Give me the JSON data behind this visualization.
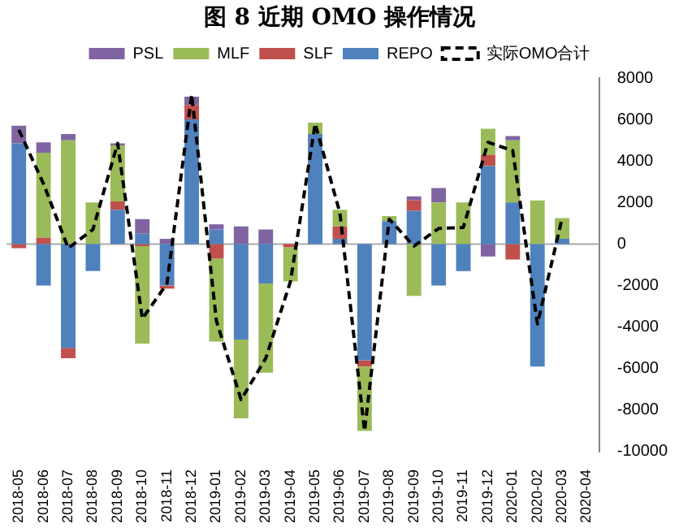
{
  "chart_data": {
    "type": "bar",
    "title": "图 8  近期 OMO 操作情况",
    "stacked": true,
    "categories": [
      "2018-05",
      "2018-06",
      "2018-07",
      "2018-08",
      "2018-09",
      "2018-10",
      "2018-11",
      "2018-12",
      "2019-01",
      "2019-02",
      "2019-03",
      "2019-04",
      "2019-05",
      "2019-06",
      "2019-07",
      "2019-08",
      "2019-09",
      "2019-10",
      "2019-11",
      "2019-12",
      "2020-01",
      "2020-02",
      "2020-03",
      "2020-04"
    ],
    "series": [
      {
        "name": "REPO",
        "color": "#4f81bd",
        "values": [
          4850,
          -2000,
          -5000,
          -1300,
          1650,
          500,
          -2000,
          6000,
          700,
          -4600,
          -1900,
          0,
          5300,
          250,
          -5600,
          1100,
          1600,
          -2000,
          -1300,
          3750,
          2000,
          -5900,
          250,
          null
        ]
      },
      {
        "name": "SLF",
        "color": "#c0504d",
        "values": [
          -200,
          300,
          -500,
          0,
          400,
          -100,
          -150,
          700,
          -700,
          0,
          0,
          -150,
          0,
          600,
          -300,
          0,
          500,
          0,
          0,
          550,
          -750,
          0,
          0,
          null
        ]
      },
      {
        "name": "MLF",
        "color": "#9bbb59",
        "values": [
          0,
          4100,
          5000,
          2000,
          2700,
          -4700,
          0,
          0,
          -4000,
          -3800,
          -4300,
          -1650,
          550,
          800,
          -3100,
          250,
          -2500,
          2000,
          2000,
          1250,
          3000,
          2100,
          1000,
          null
        ]
      },
      {
        "name": "PSL",
        "color": "#8064a2",
        "values": [
          850,
          500,
          300,
          0,
          100,
          700,
          250,
          400,
          250,
          850,
          700,
          0,
          0,
          0,
          0,
          0,
          200,
          700,
          0,
          -600,
          200,
          0,
          0,
          null
        ]
      },
      {
        "name": "实际OMO合计",
        "type": "line",
        "color": "#000000",
        "line_style": "dashed",
        "marker": "none",
        "values": [
          5500,
          2900,
          -200,
          700,
          4850,
          -3600,
          -1900,
          7200,
          -3700,
          -7500,
          -5500,
          -1800,
          5800,
          1500,
          -9000,
          1200,
          -100,
          750,
          800,
          4900,
          4500,
          -3850,
          1250,
          null
        ]
      }
    ],
    "ylim": [
      -10000,
      8000
    ],
    "yticks": [
      -10000,
      -8000,
      -6000,
      -4000,
      -2000,
      0,
      2000,
      4000,
      6000,
      8000
    ],
    "legend": "top"
  }
}
